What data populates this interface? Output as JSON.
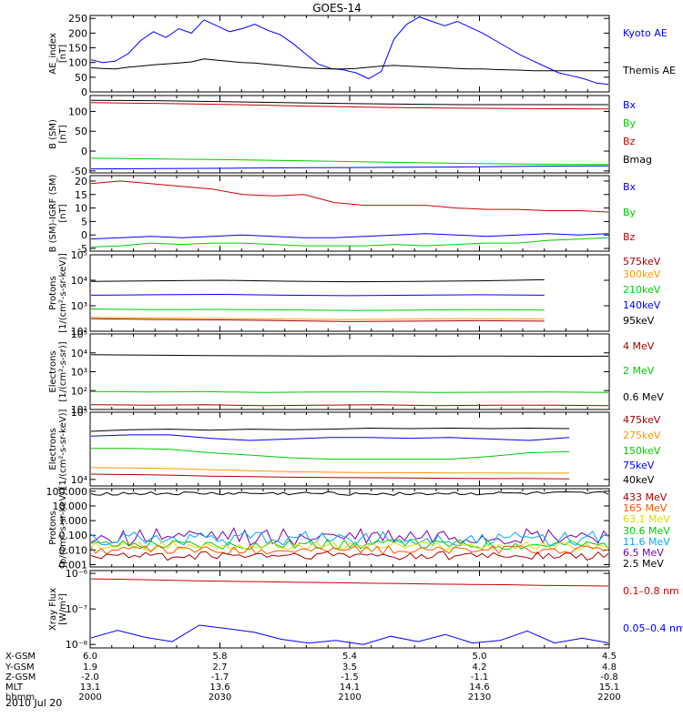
{
  "title": "GOES-14",
  "date_label": "2010 Jul 20",
  "chart_data": [
    {
      "type": "line",
      "ylabel": [
        "AE_index",
        "[nT]"
      ],
      "ylim": [
        0,
        260
      ],
      "y_ticks": [
        "0",
        "50",
        "100",
        "150",
        "200",
        "250"
      ],
      "legend": [
        {
          "name": "Kyoto AE",
          "color": "#0000ff"
        },
        {
          "name": "Themis AE",
          "color": "#000000"
        }
      ],
      "series": [
        {
          "name": "Kyoto AE",
          "color": "#0000ff",
          "values": [
            110,
            100,
            105,
            130,
            175,
            205,
            185,
            215,
            200,
            245,
            225,
            205,
            215,
            230,
            210,
            195,
            165,
            130,
            95,
            80,
            75,
            65,
            45,
            70,
            180,
            230,
            255,
            240,
            225,
            240,
            220,
            200,
            175,
            150,
            125,
            105,
            85,
            65,
            55,
            45,
            30,
            25
          ]
        },
        {
          "name": "Themis AE",
          "color": "#000000",
          "values": [
            82,
            80,
            78,
            84,
            88,
            92,
            95,
            98,
            102,
            112,
            108,
            104,
            100,
            98,
            94,
            90,
            86,
            82,
            80,
            78,
            78,
            80,
            84,
            88,
            90,
            88,
            86,
            84,
            82,
            80,
            78,
            78,
            76,
            75,
            74,
            72,
            72,
            72,
            72,
            72,
            72,
            72
          ]
        }
      ]
    },
    {
      "type": "line",
      "ylabel": [
        "B (SM)",
        "[nT]"
      ],
      "ylim": [
        -55,
        140
      ],
      "y_ticks": [
        "-50",
        "0",
        "50",
        "100"
      ],
      "legend": [
        {
          "name": "Bx",
          "color": "#0000ff"
        },
        {
          "name": "By",
          "color": "#00cc00"
        },
        {
          "name": "Bz",
          "color": "#cc0000"
        },
        {
          "name": "Bmag",
          "color": "#000000"
        }
      ],
      "series": [
        {
          "name": "Bx",
          "color": "#0000ff",
          "values": [
            -45,
            -44,
            -43,
            -42,
            -41,
            -40,
            -38,
            -37
          ]
        },
        {
          "name": "By",
          "color": "#00cc00",
          "values": [
            -18,
            -20,
            -22,
            -25,
            -28,
            -31,
            -33,
            -34
          ]
        },
        {
          "name": "Bz",
          "color": "#cc0000",
          "values": [
            122,
            120,
            117,
            113,
            110,
            108,
            107,
            106
          ]
        },
        {
          "name": "Bmag",
          "color": "#000000",
          "values": [
            128,
            127,
            124,
            121,
            119,
            117,
            117,
            117
          ]
        }
      ]
    },
    {
      "type": "line",
      "ylabel": [
        "B (SM)-IGRF (SM)",
        "[nT]"
      ],
      "ylim": [
        -6,
        22
      ],
      "y_ticks": [
        "-5",
        "0",
        "5",
        "10",
        "15",
        "20"
      ],
      "legend": [
        {
          "name": "Bx",
          "color": "#0000ff"
        },
        {
          "name": "By",
          "color": "#00cc00"
        },
        {
          "name": "Bz",
          "color": "#cc0000"
        }
      ],
      "series": [
        {
          "name": "Bx",
          "color": "#0000ff",
          "values": [
            -1.5,
            -1,
            -0.5,
            -1,
            -0.5,
            0,
            -0.5,
            -1,
            -1,
            -0.5,
            0,
            0.5,
            0,
            -0.5,
            0,
            0.5,
            0,
            0.5
          ]
        },
        {
          "name": "By",
          "color": "#00cc00",
          "values": [
            -4.5,
            -4,
            -3,
            -3.5,
            -3,
            -3,
            -3.5,
            -4,
            -4,
            -4,
            -3.5,
            -4,
            -3.5,
            -3,
            -3,
            -2,
            -1.5,
            -1
          ]
        },
        {
          "name": "Bz",
          "color": "#cc0000",
          "values": [
            19,
            20,
            19,
            18,
            17,
            15,
            14.5,
            15,
            12,
            11,
            11,
            11,
            10,
            9.5,
            9.5,
            9,
            9,
            8.5
          ]
        }
      ]
    },
    {
      "type": "line",
      "log": true,
      "ylabel": [
        "Protons",
        "[1/(cm²-s-sr-keV)]"
      ],
      "ylim": [
        100,
        100000
      ],
      "y_ticks": [
        "10²",
        "10³",
        "10⁴",
        "10⁵"
      ],
      "legend": [
        {
          "name": "575keV",
          "color": "#aa0000"
        },
        {
          "name": "300keV",
          "color": "#ff9900"
        },
        {
          "name": "210keV",
          "color": "#00cc00"
        },
        {
          "name": "140keV",
          "color": "#0000ff"
        },
        {
          "name": "95keV",
          "color": "#000000"
        }
      ],
      "series": [
        {
          "name": "95keV",
          "color": "#000000",
          "values": [
            9000,
            9500,
            10000,
            9200,
            8800,
            9000,
            9500,
            10500,
            9000
          ]
        },
        {
          "name": "140keV",
          "color": "#0000ff",
          "values": [
            2600,
            2700,
            2800,
            2600,
            2500,
            2600,
            2700,
            2600,
            2700
          ]
        },
        {
          "name": "210keV",
          "color": "#00cc00",
          "values": [
            750,
            700,
            720,
            690,
            650,
            680,
            700,
            680,
            690
          ]
        },
        {
          "name": "300keV",
          "color": "#ff9900",
          "values": [
            350,
            330,
            320,
            300,
            290,
            300,
            310,
            300,
            300
          ]
        },
        {
          "name": "575keV",
          "color": "#aa0000",
          "values": [
            310,
            290,
            280,
            260,
            240,
            250,
            260,
            250,
            250
          ]
        }
      ]
    },
    {
      "type": "line",
      "log": true,
      "ylabel": [
        "Electrons",
        "[1/(cm²-s-sr)]"
      ],
      "ylim": [
        10,
        100000
      ],
      "y_ticks": [
        "10¹",
        "10²",
        "10³",
        "10⁴",
        "10⁵"
      ],
      "legend": [
        {
          "name": "4 MeV",
          "color": "#aa0000"
        },
        {
          "name": "2 MeV",
          "color": "#00cc00"
        },
        {
          "name": "0.6 MeV",
          "color": "#000000"
        }
      ],
      "series": [
        {
          "name": "0.6 MeV",
          "color": "#000000",
          "values": [
            8000,
            7600,
            7200,
            7000,
            6800,
            6900,
            6700,
            6800,
            6600,
            6700
          ]
        },
        {
          "name": "2 MeV",
          "color": "#00cc00",
          "values": [
            90,
            85,
            88,
            80,
            84,
            86,
            80,
            82,
            84,
            80
          ]
        },
        {
          "name": "4 MeV",
          "color": "#aa0000",
          "values": [
            18,
            17,
            18,
            16,
            17,
            18,
            16,
            17,
            17,
            16
          ]
        }
      ]
    },
    {
      "type": "line",
      "log": true,
      "ylabel": [
        "Electrons",
        "[1/(cm²-s-sr-keV)]"
      ],
      "ylim": [
        8000,
        100000
      ],
      "y_ticks": [
        "10⁴",
        "10⁵"
      ],
      "legend": [
        {
          "name": "475keV",
          "color": "#aa0000"
        },
        {
          "name": "275keV",
          "color": "#ff9900"
        },
        {
          "name": "150keV",
          "color": "#00cc00"
        },
        {
          "name": "75keV",
          "color": "#0000ff"
        },
        {
          "name": "40keV",
          "color": "#000000"
        }
      ],
      "series": [
        {
          "name": "40keV",
          "color": "#000000",
          "values": [
            52000,
            55000,
            56000,
            54000,
            56000,
            55000,
            56000,
            58000,
            57000,
            58000,
            57000,
            58000,
            57000,
            58000
          ]
        },
        {
          "name": "75keV",
          "color": "#0000ff",
          "values": [
            44000,
            46000,
            46000,
            41000,
            38000,
            40000,
            42000,
            42000,
            41000,
            42000,
            40000,
            38000,
            42000,
            54000
          ]
        },
        {
          "name": "150keV",
          "color": "#00cc00",
          "values": [
            29000,
            29000,
            28000,
            25000,
            23000,
            21000,
            20000,
            20000,
            20000,
            20000,
            22000,
            25000,
            26000,
            27000
          ]
        },
        {
          "name": "275keV",
          "color": "#ff9900",
          "values": [
            15000,
            14800,
            14500,
            14000,
            13500,
            13000,
            12800,
            12600,
            12600,
            12500,
            12500,
            12400,
            12400,
            12300
          ]
        },
        {
          "name": "475keV",
          "color": "#aa0000",
          "values": [
            12000,
            11800,
            11600,
            11200,
            11000,
            10800,
            10700,
            10600,
            10500,
            10400,
            10300,
            10300,
            10200,
            10200
          ]
        }
      ]
    },
    {
      "type": "line",
      "log": true,
      "ylabel": [
        "Protons",
        "[p/(cm²-s-sr-keV)]"
      ],
      "ylim": [
        0.0007,
        150
      ],
      "y_ticks": [
        "0.001",
        "0.010",
        "0.100",
        "1.000",
        "10.000",
        "100.000"
      ],
      "legend": [
        {
          "name": "433 MeV",
          "color": "#aa0000"
        },
        {
          "name": "165 MeV",
          "color": "#ff5500"
        },
        {
          "name": "63.1 MeV",
          "color": "#dddd00"
        },
        {
          "name": "30.6 MeV",
          "color": "#00cc00"
        },
        {
          "name": "11.6 MeV",
          "color": "#00aaff"
        },
        {
          "name": "6.5 MeV",
          "color": "#7700aa"
        },
        {
          "name": "2.5 MeV",
          "color": "#000000"
        }
      ],
      "series": [
        {
          "name": "2.5 MeV",
          "color": "#000000",
          "base": 70,
          "noise": 0.12
        },
        {
          "name": "6.5 MeV",
          "color": "#7700aa",
          "base": 0.08,
          "noise": 0.6
        },
        {
          "name": "11.6 MeV",
          "color": "#00aaff",
          "base": 0.06,
          "noise": 0.5
        },
        {
          "name": "30.6 MeV",
          "color": "#00cc00",
          "base": 0.025,
          "noise": 0.35
        },
        {
          "name": "63.1 MeV",
          "color": "#dddd00",
          "base": 0.018,
          "noise": 0.3
        },
        {
          "name": "165 MeV",
          "color": "#ff5500",
          "base": 0.01,
          "noise": 0.3
        },
        {
          "name": "433 MeV",
          "color": "#aa0000",
          "base": 0.004,
          "noise": 0.3
        }
      ]
    },
    {
      "type": "line",
      "log": true,
      "ylabel": [
        "Xray Flux",
        "[W/m²]"
      ],
      "ylim": [
        8e-09,
        1.2e-06
      ],
      "y_ticks": [
        "10⁻⁸",
        "10⁻⁷",
        "10⁻⁶"
      ],
      "legend": [
        {
          "name": "0.1–0.8 nm",
          "color": "#cc0000"
        },
        {
          "name": "0.05–0.4 nm",
          "color": "#0000ff"
        }
      ],
      "series": [
        {
          "name": "0.1–0.8 nm",
          "color": "#cc0000",
          "values": [
            7e-07,
            6.8e-07,
            6.5e-07,
            6.2e-07,
            6e-07,
            5.8e-07,
            5.6e-07,
            5.5e-07,
            5.3e-07,
            5.2e-07,
            5e-07,
            4.9e-07,
            4.8e-07,
            4.6e-07,
            4.5e-07,
            4.4e-07
          ]
        },
        {
          "name": "0.05–0.4 nm",
          "color": "#0000ff",
          "values": [
            1.5e-08,
            2.5e-08,
            1.6e-08,
            1.2e-08,
            3.5e-08,
            2.8e-08,
            2.2e-08,
            1.4e-08,
            1.1e-08,
            1.3e-08,
            1e-08,
            1.7e-08,
            1.2e-08,
            1.9e-08,
            1.1e-08,
            1.3e-08,
            2.4e-08,
            1.1e-08,
            1.5e-08,
            1.1e-08
          ]
        }
      ]
    }
  ],
  "x_axis": {
    "row_labels": [
      "X-GSM",
      "Y-GSM",
      "Z-GSM",
      "MLT",
      "hhmm"
    ],
    "columns": [
      [
        "6.0",
        "1.9",
        "-2.0",
        "13.1",
        "2000"
      ],
      [
        "5.8",
        "2.7",
        "-1.7",
        "13.6",
        "2030"
      ],
      [
        "5.4",
        "3.5",
        "-1.5",
        "14.1",
        "2100"
      ],
      [
        "5.0",
        "4.2",
        "-1.1",
        "14.6",
        "2130"
      ],
      [
        "4.5",
        "4.8",
        "-0.8",
        "15.1",
        "2200"
      ]
    ]
  }
}
